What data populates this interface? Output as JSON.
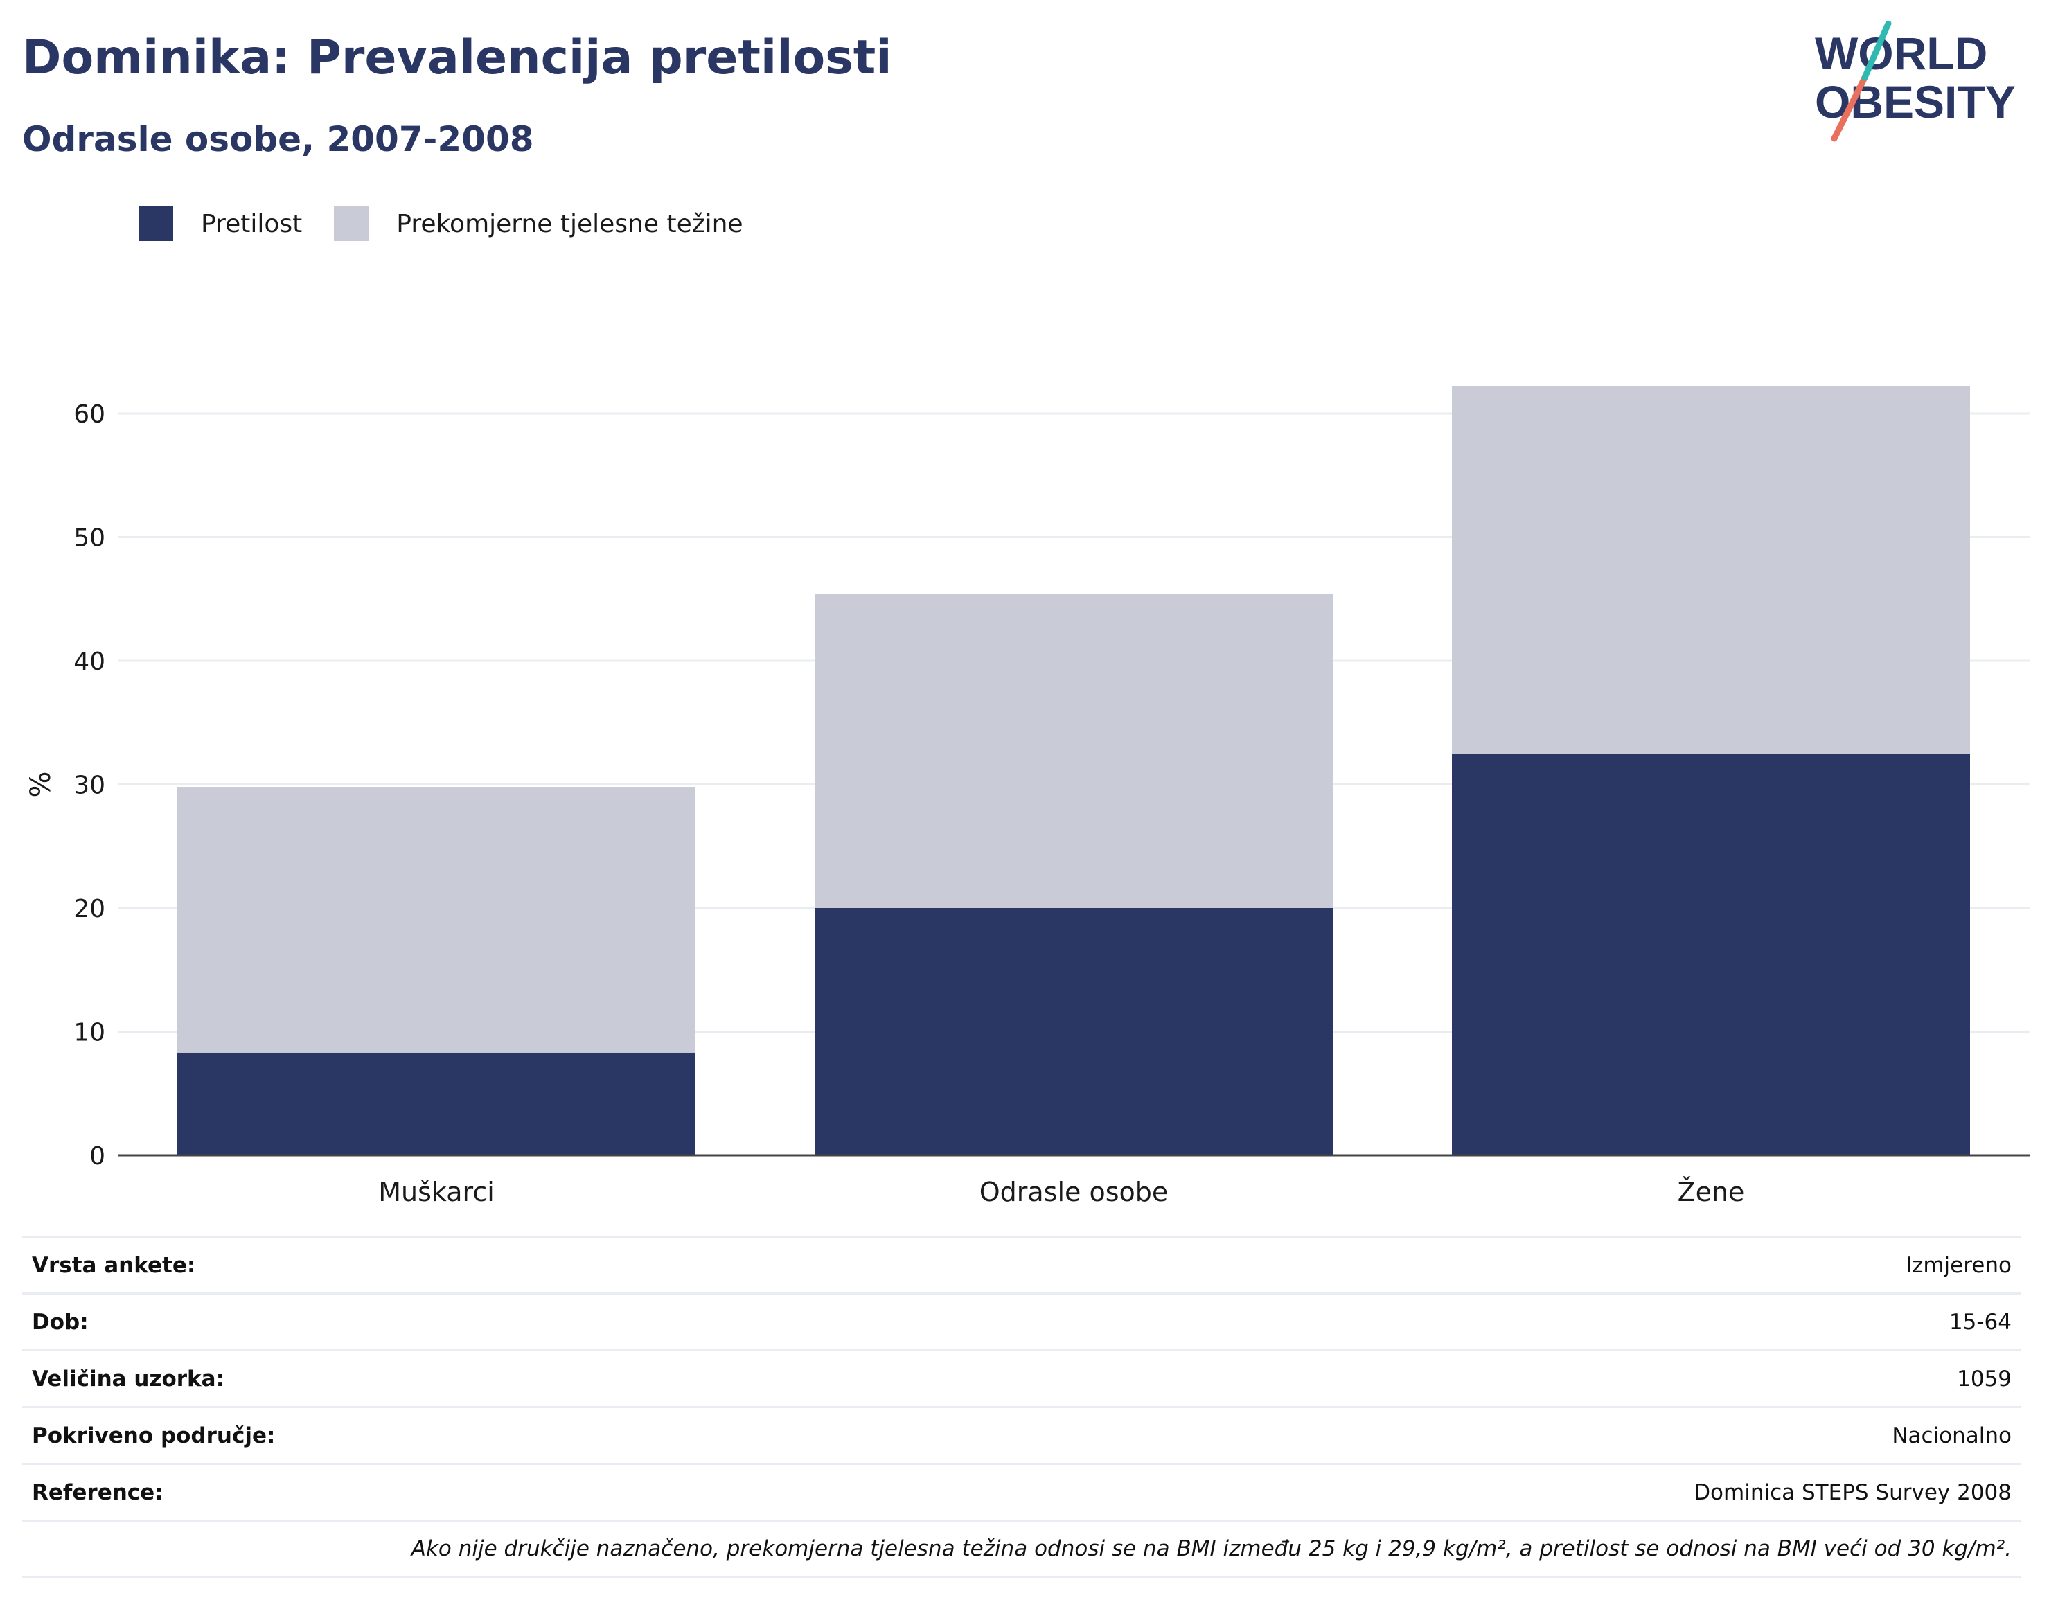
{
  "header": {
    "title": "Dominika: Prevalencija pretilosti",
    "subtitle": "Odrasle osobe, 2007-2008",
    "logo_line1": "WORLD",
    "logo_line2": "OBESITY"
  },
  "legend": [
    {
      "label": "Pretilost",
      "color": "#2a3663"
    },
    {
      "label": "Prekomjerne tjelesne težine",
      "color": "#c9cbd6"
    }
  ],
  "chart_data": {
    "type": "bar",
    "stacked": true,
    "categories": [
      "Muškarci",
      "Odrasle osobe",
      "Žene"
    ],
    "series": [
      {
        "name": "Pretilost",
        "values": [
          8.3,
          20.0,
          32.5
        ],
        "color": "#2a3663"
      },
      {
        "name": "Prekomjerne tjelesne težine",
        "values": [
          21.5,
          25.4,
          29.7
        ],
        "color": "#c9cbd6"
      }
    ],
    "ylabel": "%",
    "xlabel": "",
    "ylim": [
      0,
      65
    ],
    "yticks": [
      0,
      10,
      20,
      30,
      40,
      50,
      60
    ],
    "grid": true,
    "legend_position": "top-left"
  },
  "meta": {
    "rows": [
      {
        "key": "Vrsta ankete:",
        "value": "Izmjereno"
      },
      {
        "key": "Dob:",
        "value": "15-64"
      },
      {
        "key": "Veličina uzorka:",
        "value": "1059"
      },
      {
        "key": "Pokriveno područje:",
        "value": "Nacionalno"
      },
      {
        "key": "Reference:",
        "value": "Dominica STEPS Survey 2008"
      }
    ],
    "note": "Ako nije drukčije naznačeno, prekomjerna tjelesna težina odnosi se na BMI između 25 kg i 29,9 kg/m², a pretilost se odnosi na BMI veći od 30 kg/m²."
  }
}
